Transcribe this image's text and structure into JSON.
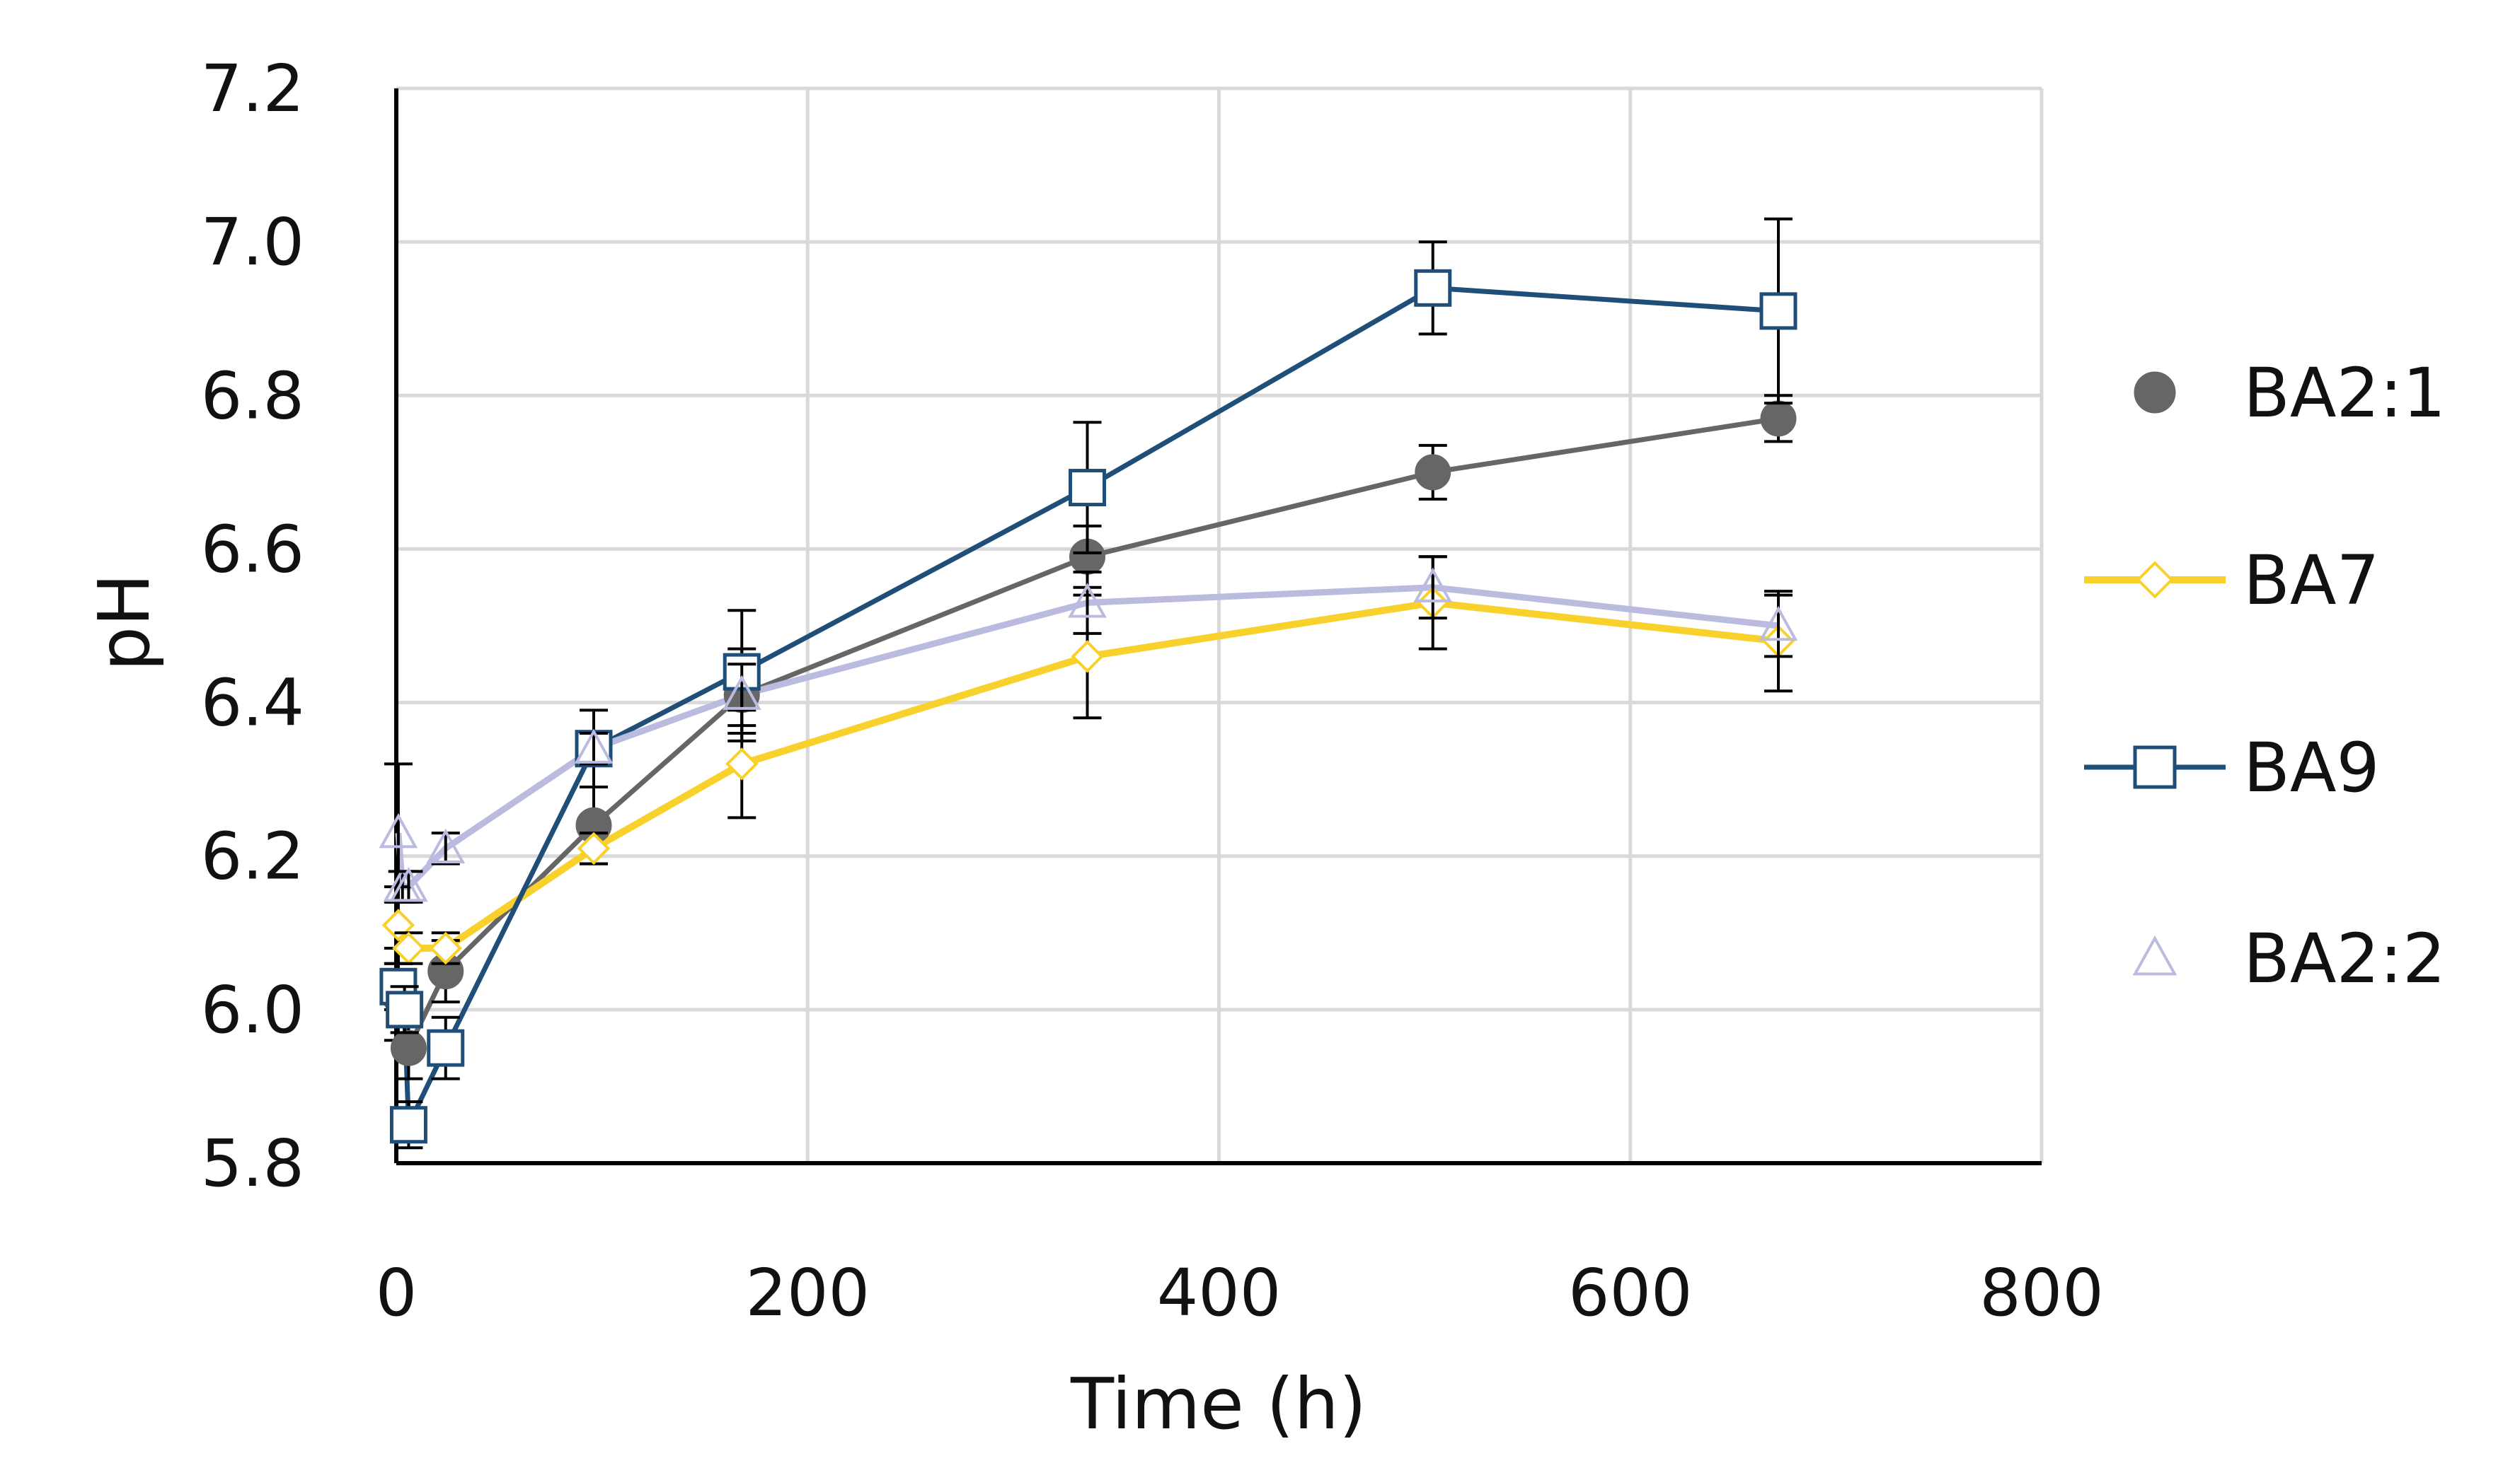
{
  "chart_data": {
    "type": "scatter",
    "title": "",
    "xlabel": "Time (h)",
    "ylabel": "pH",
    "xlim": [
      0,
      800
    ],
    "ylim": [
      5.8,
      7.2
    ],
    "x_ticks": [
      "0",
      "200",
      "400",
      "600",
      "800"
    ],
    "y_ticks": [
      "5.8",
      "6.0",
      "6.2",
      "6.4",
      "6.6",
      "6.8",
      "7.0",
      "7.2"
    ],
    "grid": true,
    "legend_position": "right",
    "series": [
      {
        "name": "BA2:1",
        "color": "#666666",
        "marker": "circle-filled",
        "x": [
          1,
          6,
          24,
          96,
          168,
          336,
          504,
          672
        ],
        "y": [
          6.02,
          5.95,
          6.05,
          6.24,
          6.41,
          6.59,
          6.7,
          6.77
        ],
        "err": [
          0.06,
          0.04,
          0.04,
          0.05,
          0.06,
          0.04,
          0.035,
          0.03
        ]
      },
      {
        "name": "BA7",
        "color": "#F9D12C",
        "marker": "diamond-open",
        "x": [
          1,
          6,
          24,
          96,
          168,
          336,
          504,
          672
        ],
        "y": [
          6.11,
          6.08,
          6.08,
          6.21,
          6.32,
          6.46,
          6.53,
          6.48
        ],
        "err": [
          0.05,
          0.02,
          0.02,
          0.02,
          0.07,
          0.08,
          0.06,
          0.065
        ]
      },
      {
        "name": "BA9",
        "color": "#1F4E79",
        "marker": "square-open",
        "x": [
          1,
          4,
          6,
          24,
          96,
          168,
          336,
          504,
          672
        ],
        "y": [
          6.03,
          6.0,
          5.85,
          5.95,
          6.34,
          6.44,
          6.68,
          6.94,
          6.91
        ],
        "err": [
          0.03,
          0.03,
          0.03,
          0.04,
          0.05,
          0.08,
          0.085,
          0.06,
          0.12
        ]
      },
      {
        "name": "BA2:2",
        "color": "#BBBBE0",
        "marker": "triangle-open",
        "x": [
          1,
          3,
          6,
          24,
          96,
          168,
          336,
          504,
          672
        ],
        "y": [
          6.23,
          6.16,
          6.16,
          6.21,
          6.34,
          6.41,
          6.53,
          6.55,
          6.5
        ],
        "err": [
          0.09,
          0.02,
          0.02,
          0.02,
          0.02,
          0.04,
          0.04,
          0.04,
          0.04
        ]
      }
    ]
  }
}
